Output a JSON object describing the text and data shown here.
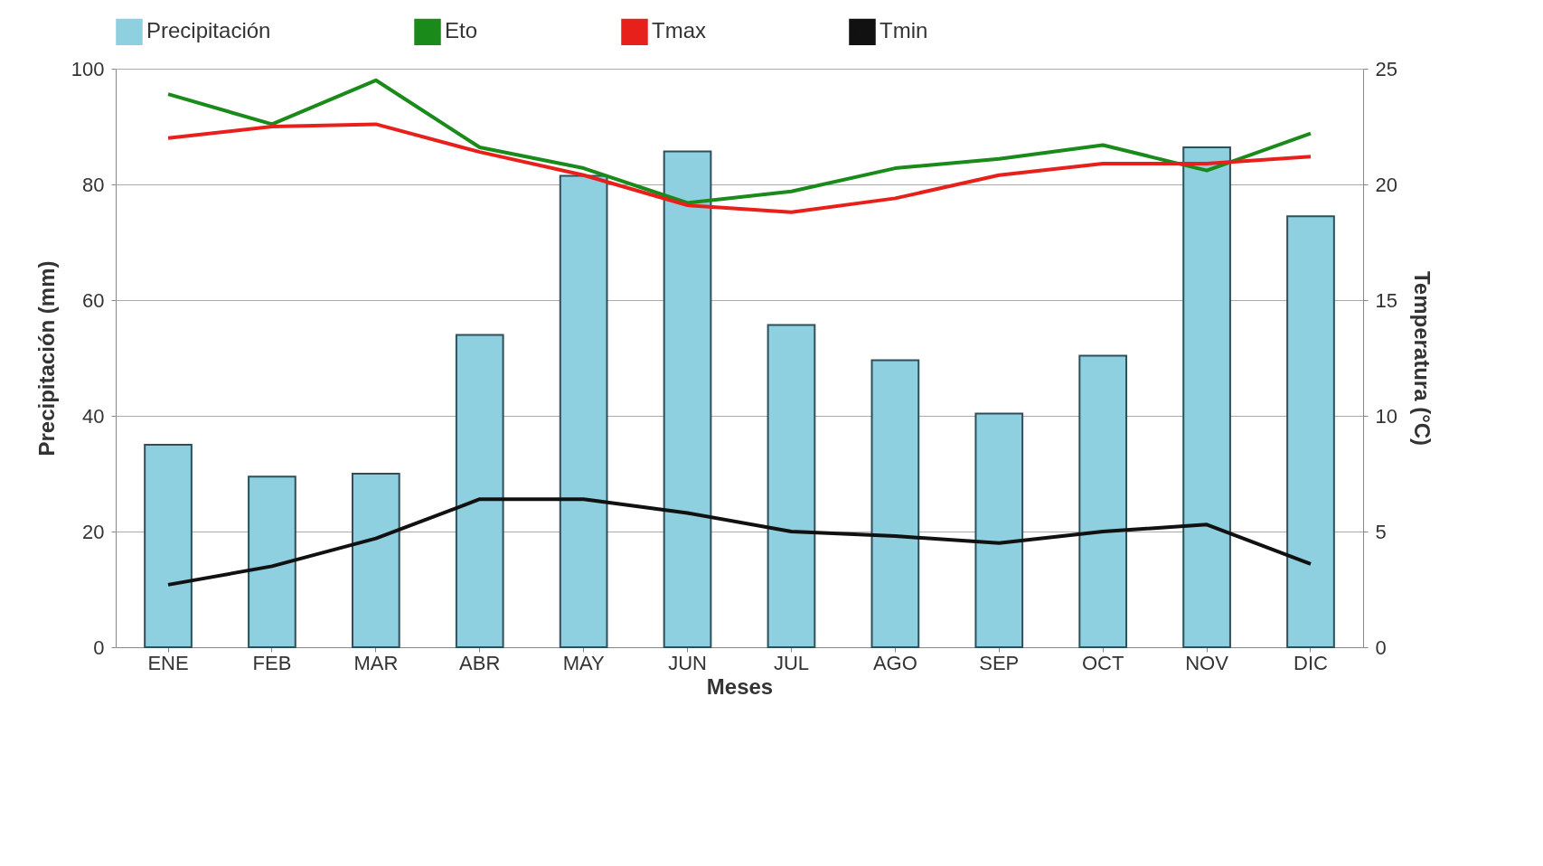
{
  "chart_data": {
    "type": "bar",
    "xlabel": "Meses",
    "ylabel": "Precipitación (mm)",
    "y2label": "Temperatura (°C)",
    "categories": [
      "ENE",
      "FEB",
      "MAR",
      "ABR",
      "MAY",
      "JUN",
      "JUL",
      "AGO",
      "SEP",
      "OCT",
      "NOV",
      "DIC"
    ],
    "series": [
      {
        "name": "Precipitación",
        "color": "#8ecfe0",
        "values": [
          35,
          29.5,
          30,
          54,
          81.5,
          85.7,
          55.7,
          49.6,
          40.4,
          50.4,
          86.4,
          74.5
        ]
      },
      {
        "name": "Eto",
        "type": "line",
        "axis": "y2",
        "color": "#1a8a1a",
        "values": [
          23.9,
          22.6,
          24.5,
          21.6,
          20.7,
          19.2,
          19.7,
          20.7,
          21.1,
          21.7,
          20.6,
          22.2
        ]
      },
      {
        "name": "Tmax",
        "type": "line",
        "axis": "y2",
        "color": "#e8201c",
        "values": [
          22.0,
          22.5,
          22.6,
          21.4,
          20.4,
          19.1,
          18.8,
          19.4,
          20.4,
          20.9,
          20.9,
          21.2
        ]
      },
      {
        "name": "Tmin",
        "type": "line",
        "axis": "y2",
        "color": "#111111",
        "values": [
          2.7,
          3.5,
          4.7,
          6.4,
          6.4,
          5.8,
          5.0,
          4.8,
          4.5,
          5.0,
          5.3,
          3.6
        ]
      }
    ],
    "ylim": [
      0,
      100
    ],
    "yticks": [
      0,
      20,
      40,
      60,
      80,
      100
    ],
    "y2lim": [
      0,
      25
    ],
    "y2ticks": [
      0,
      5,
      10,
      15,
      20,
      25
    ],
    "grid": "y",
    "legend": "top",
    "marker": "none",
    "line_style": "solid"
  }
}
